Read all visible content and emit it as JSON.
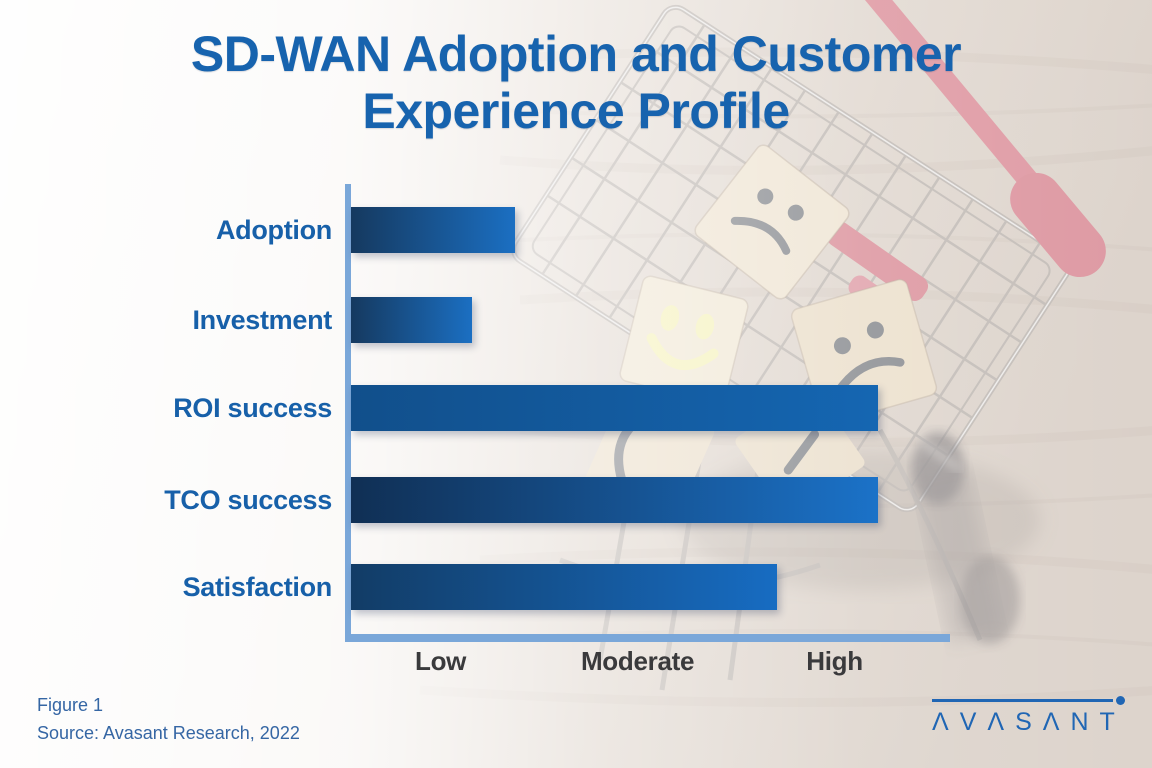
{
  "title": {
    "full": "SD-WAN Adoption and Customer Experience Profile",
    "lines": [
      "SD-WAN Adoption and Customer",
      "Experience Profile"
    ],
    "color": "#1763ae"
  },
  "chart_data": {
    "type": "bar",
    "orientation": "horizontal",
    "title": "SD-WAN Adoption and Customer Experience Profile",
    "categories": [
      "Adoption",
      "Investment",
      "ROI success",
      "TCO success",
      "Satisfaction"
    ],
    "values_pct_of_axis": [
      27.5,
      20.3,
      88.3,
      88.3,
      71.4
    ],
    "qualitative_levels": [
      "Low-Moderate",
      "Low",
      "High",
      "High",
      "Moderate-High"
    ],
    "x_tick_labels": [
      "Low",
      "Moderate",
      "High"
    ],
    "x_tick_positions_pct": [
      15,
      48,
      81
    ],
    "xlabel": "",
    "ylabel": "",
    "grid": false,
    "legend": false,
    "bars": [
      {
        "label": "Adoption",
        "value_pct": 27.5,
        "level": "Low-Moderate",
        "color_from": "#15395f",
        "color_to": "#1b6fc2"
      },
      {
        "label": "Investment",
        "value_pct": 20.3,
        "level": "Low",
        "color_from": "#15395f",
        "color_to": "#1b6fc2"
      },
      {
        "label": "ROI success",
        "value_pct": 88.3,
        "level": "High",
        "color_from": "#114f8b",
        "color_to": "#1566b2"
      },
      {
        "label": "TCO success",
        "value_pct": 88.3,
        "level": "High",
        "color_from": "#102f54",
        "color_to": "#1b72c8"
      },
      {
        "label": "Satisfaction",
        "value_pct": 71.4,
        "level": "Moderate-High",
        "color_from": "#123c66",
        "color_to": "#176cc2"
      }
    ],
    "axis_color": "#7aa7d9",
    "category_label_color": "#1760a9",
    "x_tick_label_color": "#3a3a3c"
  },
  "caption": {
    "figure_label": "Figure 1",
    "source": "Source: Avasant Research, 2022",
    "color": "#3566a4"
  },
  "logo": {
    "text": "AVASANT",
    "display_text": "ΛVΛSΛNT",
    "color": "#2066b4"
  },
  "background_photo": {
    "description_colors": {
      "cart_red": "#c85666",
      "smiley_yellow": "#f0eb9b",
      "wood_beige": "#cfc1b4",
      "block_tan": "#e3d2b6",
      "face_dark": "#474b52"
    }
  }
}
